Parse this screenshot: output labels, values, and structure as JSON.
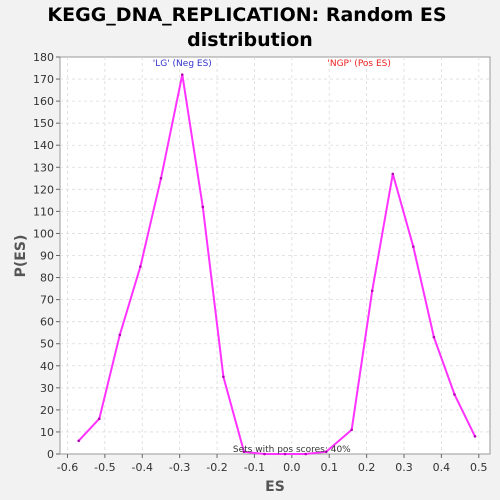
{
  "chart_data": {
    "type": "line",
    "title_lines": [
      "KEGG_DNA_REPLICATION: Random ES",
      "distribution"
    ],
    "xlabel": "ES",
    "ylabel": "P(ES)",
    "xlim": [
      -0.62,
      0.53
    ],
    "ylim": [
      0,
      180
    ],
    "x_ticks": [
      -0.6,
      -0.5,
      -0.4,
      -0.3,
      -0.2,
      -0.1,
      0.0,
      0.1,
      0.2,
      0.3,
      0.4,
      0.5
    ],
    "x_tick_labels": [
      "-0.6",
      "-0.5",
      "-0.4",
      "-0.3",
      "-0.2",
      "-0.1",
      "0.0",
      "0.1",
      "0.2",
      "0.3",
      "0.4",
      "0.5"
    ],
    "y_ticks": [
      0,
      10,
      20,
      30,
      40,
      50,
      60,
      70,
      80,
      90,
      100,
      110,
      120,
      130,
      140,
      150,
      160,
      170,
      180
    ],
    "grid": true,
    "line_color": "#ff33ff",
    "series": [
      {
        "points": [
          {
            "x": -0.57,
            "y": 6
          },
          {
            "x": -0.515,
            "y": 16
          },
          {
            "x": -0.46,
            "y": 54
          },
          {
            "x": -0.405,
            "y": 85
          },
          {
            "x": -0.35,
            "y": 125
          },
          {
            "x": -0.293,
            "y": 172
          },
          {
            "x": -0.238,
            "y": 112
          },
          {
            "x": -0.183,
            "y": 35
          },
          {
            "x": -0.128,
            "y": 1
          },
          {
            "x": -0.073,
            "y": 0
          },
          {
            "x": -0.018,
            "y": 0
          },
          {
            "x": 0.037,
            "y": 0
          },
          {
            "x": 0.092,
            "y": 1
          },
          {
            "x": 0.16,
            "y": 11
          },
          {
            "x": 0.215,
            "y": 74
          },
          {
            "x": 0.27,
            "y": 127
          },
          {
            "x": 0.325,
            "y": 94
          },
          {
            "x": 0.38,
            "y": 53
          },
          {
            "x": 0.435,
            "y": 27
          },
          {
            "x": 0.49,
            "y": 8
          }
        ]
      }
    ],
    "annotations": [
      {
        "text": "'LG' (Neg ES)",
        "x": -0.293,
        "y": 176,
        "color": "#3333cc"
      },
      {
        "text": "'NGP' (Pos ES)",
        "x": 0.18,
        "y": 176,
        "color": "#ee2222"
      },
      {
        "text": "Sets with pos scores: 40%",
        "x": 0.0,
        "y": 1,
        "color": "#333333"
      }
    ]
  }
}
